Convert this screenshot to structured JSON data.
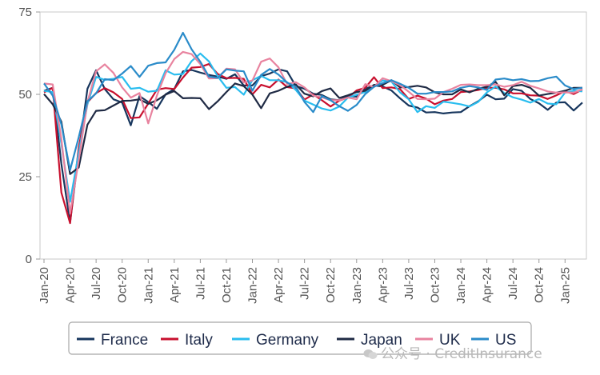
{
  "chart_data": {
    "type": "line",
    "title": "",
    "xlabel": "",
    "ylabel": "",
    "ylim": [
      0,
      75
    ],
    "yticks": [
      0,
      25,
      50,
      75
    ],
    "grid": false,
    "legend_position": "bottom",
    "x": [
      "Jan-20",
      "Feb-20",
      "Mar-20",
      "Apr-20",
      "May-20",
      "Jun-20",
      "Jul-20",
      "Aug-20",
      "Sep-20",
      "Oct-20",
      "Nov-20",
      "Dec-20",
      "Jan-21",
      "Feb-21",
      "Mar-21",
      "Apr-21",
      "May-21",
      "Jun-21",
      "Jul-21",
      "Aug-21",
      "Sep-21",
      "Oct-21",
      "Nov-21",
      "Dec-21",
      "Jan-22",
      "Feb-22",
      "Mar-22",
      "Apr-22",
      "May-22",
      "Jun-22",
      "Jul-22",
      "Aug-22",
      "Sep-22",
      "Oct-22",
      "Nov-22",
      "Dec-22",
      "Jan-23",
      "Feb-23",
      "Mar-23",
      "Apr-23",
      "May-23",
      "Jun-23",
      "Jul-23",
      "Aug-23",
      "Sep-23",
      "Oct-23",
      "Nov-23",
      "Dec-23",
      "Jan-24",
      "Feb-24",
      "Mar-24",
      "Apr-24",
      "May-24",
      "Jun-24",
      "Jul-24",
      "Aug-24",
      "Sep-24",
      "Oct-24",
      "Nov-24",
      "Dec-24",
      "Jan-25",
      "Feb-25",
      "Mar-25"
    ],
    "xtick_labels": [
      "Jan-20",
      "Apr-20",
      "Jul-20",
      "Oct-20",
      "Jan-21",
      "Apr-21",
      "Jul-21",
      "Oct-21",
      "Jan-22",
      "Apr-22",
      "Jul-22",
      "Oct-22",
      "Jan-23",
      "Apr-23",
      "Jul-23",
      "Oct-23",
      "Jan-24",
      "Apr-24",
      "Jul-24",
      "Oct-24",
      "Jan-25"
    ],
    "series": [
      {
        "name": "France",
        "color": "#17365d",
        "values": [
          51.1,
          52.0,
          28.9,
          11.1,
          32.1,
          51.7,
          57.3,
          51.6,
          48.5,
          47.5,
          40.6,
          49.5,
          47.7,
          45.6,
          50.0,
          51.6,
          57.0,
          57.4,
          56.6,
          55.9,
          55.4,
          54.7,
          56.1,
          52.7,
          52.7,
          55.5,
          56.3,
          57.6,
          57.0,
          52.5,
          51.7,
          50.2,
          49.8,
          48.5,
          48.2,
          49.5,
          49.3,
          51.7,
          52.7,
          52.4,
          51.2,
          48.8,
          46.6,
          46.0,
          44.5,
          44.6,
          44.2,
          44.5,
          44.6,
          46.4,
          47.9,
          49.9,
          48.5,
          48.7,
          51.6,
          51.1,
          48.6,
          47.3,
          45.3,
          47.5,
          47.6,
          45.1,
          47.5
        ]
      },
      {
        "name": "Italy",
        "color": "#c8102e",
        "values": [
          50.6,
          52.0,
          20.2,
          10.9,
          33.9,
          47.6,
          50.4,
          51.9,
          50.6,
          48.6,
          42.8,
          43.0,
          47.2,
          51.4,
          51.9,
          51.6,
          55.1,
          58.1,
          58.3,
          59.2,
          56.2,
          54.9,
          55.0,
          54.7,
          50.0,
          52.9,
          52.1,
          54.5,
          52.2,
          51.8,
          48.4,
          50.0,
          48.2,
          46.3,
          48.1,
          49.0,
          51.2,
          52.0,
          55.2,
          51.9,
          52.1,
          51.6,
          48.6,
          49.6,
          48.7,
          47.0,
          48.1,
          48.6,
          50.7,
          50.9,
          51.3,
          52.0,
          52.0,
          51.5,
          50.3,
          50.3,
          49.7,
          49.6,
          48.6,
          49.7,
          51.0,
          50.1,
          51.5
        ]
      },
      {
        "name": "Germany",
        "color": "#29bdef",
        "values": [
          51.1,
          50.7,
          35.0,
          17.4,
          32.3,
          47.0,
          55.3,
          54.4,
          54.7,
          55.3,
          51.7,
          52.0,
          50.8,
          51.1,
          57.3,
          56.0,
          56.2,
          60.1,
          62.4,
          60.0,
          55.5,
          52.0,
          52.2,
          49.9,
          54.3,
          55.6,
          54.3,
          54.3,
          53.7,
          51.3,
          48.1,
          46.9,
          45.7,
          45.1,
          46.3,
          49.0,
          49.9,
          50.7,
          52.6,
          54.2,
          53.9,
          50.6,
          48.5,
          44.6,
          46.4,
          45.9,
          47.8,
          47.4,
          47.0,
          46.3,
          47.7,
          50.6,
          52.4,
          50.4,
          49.1,
          48.4,
          47.5,
          48.6,
          47.2,
          47.0,
          50.5,
          51.1,
          50.9
        ]
      },
      {
        "name": "Japan",
        "color": "#1f2a44",
        "values": [
          50.1,
          47.0,
          41.7,
          25.8,
          27.8,
          40.8,
          45.0,
          45.2,
          46.6,
          48.0,
          48.1,
          48.5,
          47.1,
          48.2,
          49.9,
          51.0,
          48.8,
          48.9,
          48.8,
          45.5,
          47.9,
          50.7,
          53.3,
          52.5,
          49.9,
          45.8,
          50.3,
          51.1,
          52.3,
          53.0,
          50.2,
          49.4,
          51.0,
          51.8,
          48.9,
          49.7,
          50.7,
          51.1,
          52.9,
          52.9,
          54.3,
          52.1,
          52.2,
          52.6,
          52.1,
          50.6,
          50.0,
          50.0,
          51.5,
          50.6,
          51.7,
          52.3,
          53.8,
          49.7,
          52.5,
          52.9,
          52.0,
          49.6,
          50.1,
          50.5,
          51.1,
          52.0,
          52.0
        ]
      },
      {
        "name": "UK",
        "color": "#e8839f",
        "values": [
          53.3,
          53.0,
          36.5,
          13.8,
          30.0,
          47.7,
          57.0,
          59.1,
          56.5,
          52.1,
          49.0,
          50.4,
          41.2,
          49.6,
          56.4,
          60.7,
          62.9,
          62.2,
          59.2,
          54.8,
          54.9,
          57.8,
          57.6,
          53.6,
          54.2,
          59.9,
          60.9,
          58.2,
          53.1,
          53.7,
          52.1,
          49.6,
          49.1,
          48.2,
          48.2,
          49.0,
          48.5,
          53.1,
          52.2,
          54.9,
          54.0,
          52.8,
          50.8,
          48.6,
          48.5,
          48.7,
          50.7,
          51.7,
          52.9,
          53.0,
          52.8,
          52.8,
          53.0,
          52.3,
          52.8,
          53.8,
          52.6,
          51.8,
          50.9,
          50.5,
          50.6,
          50.5,
          51.5
        ]
      },
      {
        "name": "US",
        "color": "#2a8bc9",
        "values": [
          53.3,
          49.6,
          40.9,
          27.0,
          37.0,
          47.9,
          50.3,
          54.6,
          54.3,
          56.3,
          58.6,
          55.3,
          58.7,
          59.5,
          59.7,
          63.5,
          68.7,
          63.7,
          59.9,
          55.4,
          55.0,
          57.6,
          57.2,
          57.0,
          51.1,
          55.9,
          57.7,
          56.0,
          53.6,
          52.3,
          47.7,
          44.6,
          49.5,
          48.2,
          46.4,
          45.0,
          46.8,
          50.1,
          52.3,
          53.4,
          54.3,
          53.2,
          52.0,
          50.2,
          50.2,
          50.7,
          50.7,
          50.9,
          52.0,
          52.5,
          52.1,
          51.3,
          54.5,
          54.8,
          54.3,
          54.6,
          54.0,
          54.1,
          54.9,
          55.4,
          52.7,
          51.6,
          52.0
        ]
      }
    ]
  }
}
